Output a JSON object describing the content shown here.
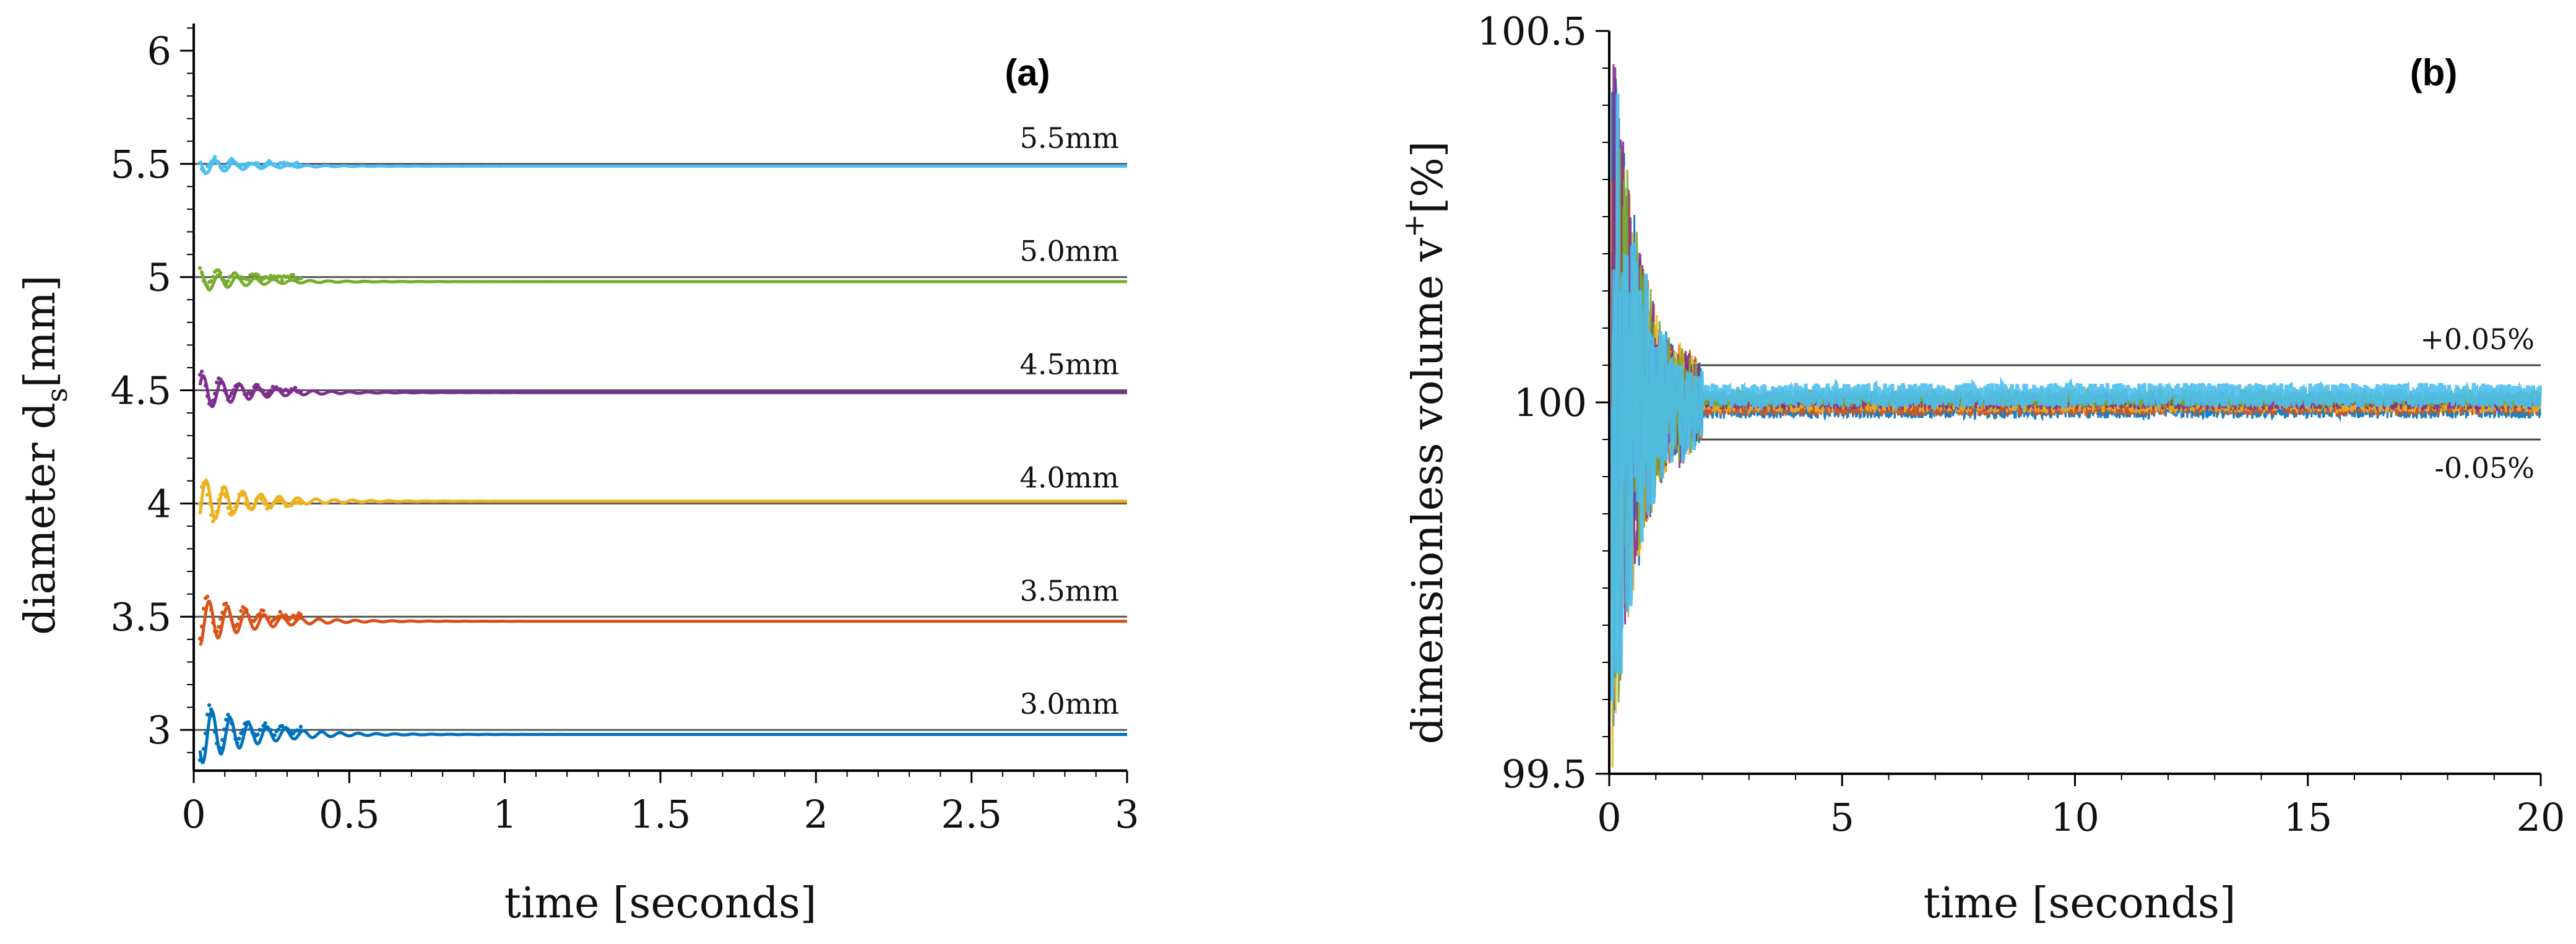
{
  "chart_data": [
    {
      "type": "line",
      "panel_label": "(a)",
      "xlabel": "time [seconds]",
      "ylabel": "diameter d",
      "ylabel_sub": "s",
      "ylabel_unit": "[mm]",
      "xlim": [
        0,
        3
      ],
      "ylim": [
        2.82,
        6.12
      ],
      "xticks": [
        0,
        0.5,
        1,
        1.5,
        2,
        2.5,
        3
      ],
      "xtick_labels": [
        "0",
        "0.5",
        "1",
        "1.5",
        "2",
        "2.5",
        "3"
      ],
      "yticks": [
        3,
        3.5,
        4,
        4.5,
        5,
        5.5,
        6
      ],
      "ytick_labels": [
        "3",
        "3.5",
        "4",
        "4.5",
        "5",
        "5.5",
        "6"
      ],
      "series": [
        {
          "name": "3.0mm",
          "target": 3.0,
          "settle": 2.98,
          "amplitude": 0.15,
          "color": "#0072BD"
        },
        {
          "name": "3.5mm",
          "target": 3.5,
          "settle": 3.48,
          "amplitude": 0.12,
          "color": "#D95319"
        },
        {
          "name": "4.0mm",
          "target": 4.0,
          "settle": 4.01,
          "amplitude": 0.12,
          "color": "#EDB120"
        },
        {
          "name": "4.5mm",
          "target": 4.5,
          "settle": 4.49,
          "amplitude": 0.09,
          "color": "#7E2F8E"
        },
        {
          "name": "5.0mm",
          "target": 5.0,
          "settle": 4.98,
          "amplitude": 0.05,
          "color": "#77AC30"
        },
        {
          "name": "5.5mm",
          "target": 5.5,
          "settle": 5.49,
          "amplitude": 0.04,
          "color": "#4DBEEE"
        }
      ]
    },
    {
      "type": "scatter",
      "panel_label": "(b)",
      "xlabel": "time [seconds]",
      "ylabel": "dimensionless volume v",
      "ylabel_sup": "+",
      "ylabel_unit": "[%]",
      "xlim": [
        0,
        20
      ],
      "ylim": [
        99.5,
        100.5
      ],
      "xticks": [
        0,
        5,
        10,
        15,
        20
      ],
      "xtick_labels": [
        "0",
        "5",
        "10",
        "15",
        "20"
      ],
      "yticks": [
        99.5,
        100,
        100.5
      ],
      "ytick_labels": [
        "99.5",
        "100",
        "100.5"
      ],
      "reference_lines": [
        {
          "label": "+0.05%",
          "value": 100.05
        },
        {
          "label": "-0.05%",
          "value": 99.95
        }
      ],
      "series": [
        {
          "name": "3.0mm",
          "color": "#0072BD"
        },
        {
          "name": "3.5mm",
          "color": "#D95319"
        },
        {
          "name": "4.0mm",
          "color": "#EDB120"
        },
        {
          "name": "4.5mm",
          "color": "#7E2F8E"
        },
        {
          "name": "5.0mm",
          "color": "#77AC30"
        },
        {
          "name": "5.5mm",
          "color": "#4DBEEE"
        }
      ]
    }
  ]
}
